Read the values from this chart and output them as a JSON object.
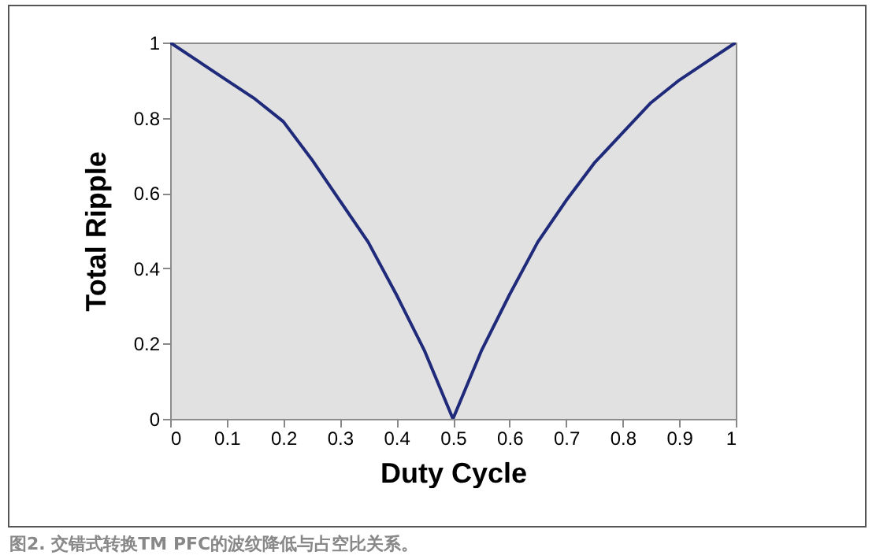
{
  "chart_data": {
    "type": "line",
    "xlabel": "Duty Cycle",
    "ylabel": "Total Ripple",
    "annotations": [
      "图2. 交错式转换TM PFC的波纹降低与占空比关系。"
    ],
    "x": [
      0,
      0.05,
      0.1,
      0.15,
      0.2,
      0.25,
      0.3,
      0.35,
      0.4,
      0.45,
      0.5,
      0.55,
      0.6,
      0.65,
      0.7,
      0.75,
      0.8,
      0.85,
      0.9,
      0.95,
      1
    ],
    "series": [
      {
        "color": "#1f2a7a",
        "values": [
          1,
          0.95,
          0.9,
          0.85,
          0.79,
          0.69,
          0.58,
          0.47,
          0.33,
          0.18,
          0,
          0.18,
          0.33,
          0.47,
          0.58,
          0.68,
          0.76,
          0.84,
          0.9,
          0.95,
          1
        ]
      }
    ],
    "xlim": [
      0,
      1
    ],
    "xticks": [
      0,
      0.1,
      0.2,
      0.3,
      0.4,
      0.5,
      0.6,
      0.7,
      0.8,
      0.9,
      1
    ],
    "ylim": [
      0,
      1
    ],
    "yticks": [
      0,
      0.2,
      0.4,
      0.6,
      0.8,
      1
    ],
    "grid": false,
    "legend": false,
    "marker": "none",
    "line_style": "solid"
  }
}
